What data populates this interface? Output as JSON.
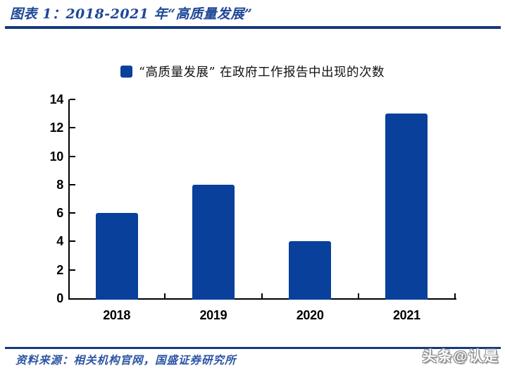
{
  "header": {
    "title": "图表 1：2018-2021 年“高质量发展”"
  },
  "chart_data": {
    "type": "bar",
    "title": "",
    "legend": "“高质量发展” 在政府工作报告中出现的次数",
    "legend_position": "top-center",
    "categories": [
      "2018",
      "2019",
      "2020",
      "2021"
    ],
    "values": [
      6,
      8,
      4,
      13
    ],
    "xlabel": "",
    "ylabel": "",
    "ylim": [
      0,
      14
    ],
    "ytick_step": 2,
    "grid": false,
    "bar_color": "#08409c"
  },
  "footer": {
    "source": "资料来源：相关机构官网，国盛证券研究所",
    "watermark": "头条@认是"
  },
  "colors": {
    "rule": "#163a7d",
    "title_text": "#1e4796",
    "source_text": "#2d56a5",
    "axis": "#000000",
    "bar": "#08409c"
  }
}
